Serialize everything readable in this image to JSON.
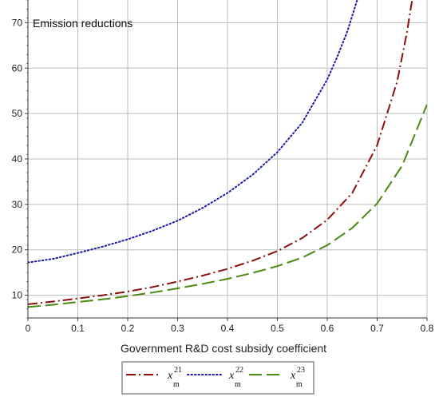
{
  "chart_data": {
    "type": "line",
    "title": "Emission reductions",
    "xlabel": "Government R&D cost subsidy coefficient",
    "ylabel": "",
    "xlim": [
      0,
      0.8
    ],
    "ylim": [
      5,
      75
    ],
    "grid": true,
    "legend_position": "bottom",
    "x_ticks": [
      "0",
      "0.1",
      "0.2",
      "0.3",
      "0.4",
      "0.5",
      "0.6",
      "0.7",
      "0.8"
    ],
    "y_ticks": [
      "10",
      "20",
      "30",
      "40",
      "50",
      "60",
      "70"
    ],
    "series": [
      {
        "name": "x_m^21",
        "legend_base": "x",
        "legend_sup": "21",
        "legend_sub": "m",
        "color": "#8b0d0d",
        "style": "dash-dot",
        "x": [
          0,
          0.05,
          0.1,
          0.15,
          0.2,
          0.25,
          0.3,
          0.35,
          0.4,
          0.45,
          0.5,
          0.55,
          0.6,
          0.65,
          0.7,
          0.72,
          0.74,
          0.76,
          0.77
        ],
        "y": [
          8.0,
          8.6,
          9.3,
          10.0,
          10.8,
          11.8,
          13.0,
          14.3,
          15.8,
          17.6,
          19.7,
          22.6,
          26.6,
          32.5,
          43.0,
          50.0,
          57.0,
          68.0,
          75.0
        ]
      },
      {
        "name": "x_m^22",
        "legend_base": "x",
        "legend_sup": "22",
        "legend_sub": "m",
        "color": "#1a1aa6",
        "style": "dotted",
        "x": [
          0,
          0.05,
          0.1,
          0.15,
          0.2,
          0.25,
          0.3,
          0.35,
          0.4,
          0.45,
          0.5,
          0.55,
          0.6,
          0.62,
          0.64,
          0.66
        ],
        "y": [
          17.2,
          18.0,
          19.3,
          20.7,
          22.3,
          24.2,
          26.4,
          29.2,
          32.5,
          36.5,
          41.5,
          48.0,
          57.5,
          62.5,
          68.0,
          75.0
        ]
      },
      {
        "name": "x_m^23",
        "legend_base": "x",
        "legend_sup": "23",
        "legend_sub": "m",
        "color": "#4a8a12",
        "style": "dashed",
        "x": [
          0,
          0.05,
          0.1,
          0.15,
          0.2,
          0.25,
          0.3,
          0.35,
          0.4,
          0.45,
          0.5,
          0.55,
          0.6,
          0.65,
          0.7,
          0.75,
          0.8
        ],
        "y": [
          7.4,
          7.9,
          8.5,
          9.1,
          9.8,
          10.6,
          11.5,
          12.5,
          13.6,
          14.9,
          16.4,
          18.3,
          21.0,
          24.8,
          30.2,
          38.5,
          52.0
        ]
      }
    ]
  }
}
